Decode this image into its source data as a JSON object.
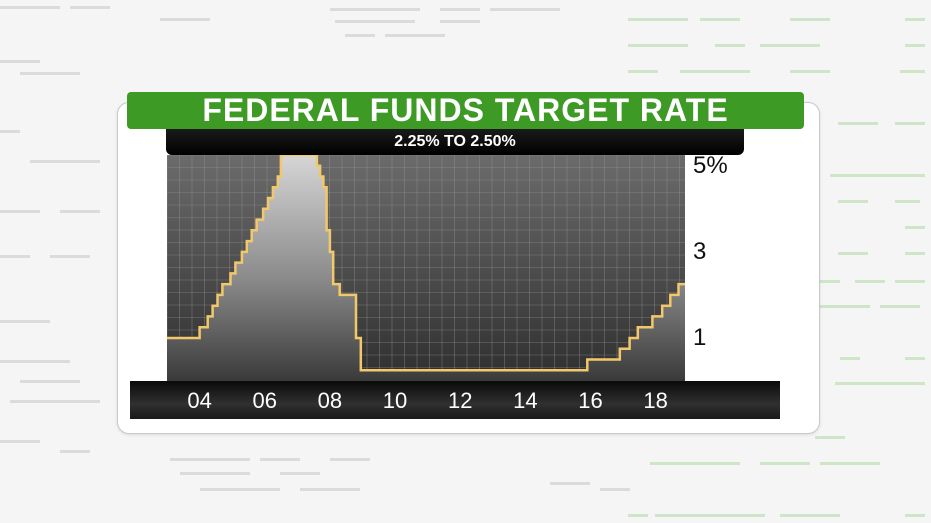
{
  "header": {
    "title": "FEDERAL FUNDS TARGET RATE",
    "subtitle": "2.25% TO 2.50%"
  },
  "colors": {
    "title_bg": "#3d9a25",
    "line": "#f3c86a",
    "plot_bg_top": "#6a6a6a",
    "plot_bg_bottom": "#2e2e2e"
  },
  "chart_data": {
    "type": "line",
    "step": true,
    "x_tick_labels": [
      "04",
      "06",
      "08",
      "10",
      "12",
      "14",
      "16",
      "18"
    ],
    "x_tick_values": [
      2004,
      2006,
      2008,
      2010,
      2012,
      2014,
      2016,
      2018
    ],
    "y_tick_labels": [
      "5%",
      "3",
      "1"
    ],
    "y_tick_values": [
      5,
      3,
      1
    ],
    "xlim": [
      2003.0,
      2018.9
    ],
    "ylim": [
      0,
      5.25
    ],
    "grid": true,
    "x": [
      2003.0,
      2004.0,
      2004.25,
      2004.4,
      2004.55,
      2004.7,
      2004.95,
      2005.1,
      2005.3,
      2005.45,
      2005.6,
      2005.75,
      2005.95,
      2006.1,
      2006.25,
      2006.4,
      2006.5,
      2007.6,
      2007.7,
      2007.8,
      2007.9,
      2008.0,
      2008.1,
      2008.3,
      2008.8,
      2008.95,
      2015.9,
      2016.9,
      2017.2,
      2017.45,
      2017.9,
      2018.2,
      2018.45,
      2018.7,
      2018.95,
      2018.9
    ],
    "y": [
      1.0,
      1.25,
      1.5,
      1.75,
      2.0,
      2.25,
      2.5,
      2.75,
      3.0,
      3.25,
      3.5,
      3.75,
      4.0,
      4.25,
      4.5,
      4.75,
      5.25,
      5.0,
      4.75,
      4.5,
      3.5,
      3.0,
      2.25,
      2.0,
      1.0,
      0.25,
      0.5,
      0.75,
      1.0,
      1.25,
      1.5,
      1.75,
      2.0,
      2.25,
      2.5,
      2.5
    ]
  }
}
